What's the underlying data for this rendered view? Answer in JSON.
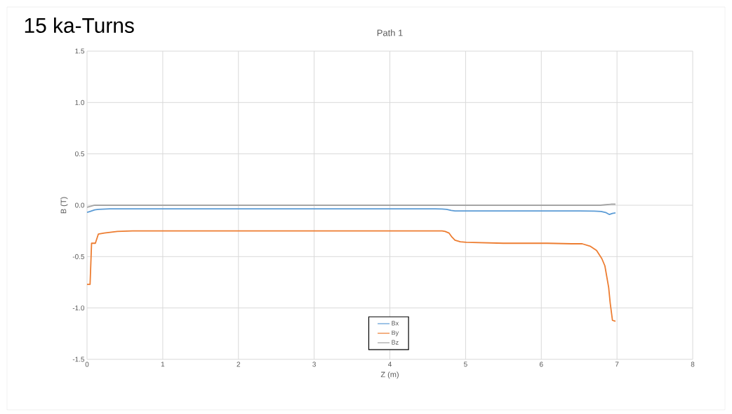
{
  "chart_data": {
    "type": "line",
    "title": "Path 1",
    "xlabel": "Z (m)",
    "ylabel": "B (T)",
    "annotations": [
      "15 ka-Turns"
    ],
    "xlim": [
      0,
      8
    ],
    "xticks": [
      0,
      1,
      2,
      3,
      4,
      5,
      6,
      7,
      8
    ],
    "ylim": [
      -1.5,
      1.5
    ],
    "yticks": [
      {
        "value": -1.5,
        "label": "-1.5"
      },
      {
        "value": -1,
        "label": "-1.0"
      },
      {
        "value": -0.5,
        "label": "-0.5"
      },
      {
        "value": 0,
        "label": "0.0"
      },
      {
        "value": 0.5,
        "label": "0.5"
      },
      {
        "value": 1,
        "label": "1.0"
      },
      {
        "value": 1.5,
        "label": "1.5"
      }
    ],
    "grid": true,
    "legend": "bottom",
    "marker": "none",
    "line_style": "solid",
    "series": [
      {
        "name": "Bx",
        "color": "#5b9bd5",
        "x": [
          0,
          0.04,
          0.1,
          0.15,
          0.3,
          1,
          2,
          3,
          4,
          4.6,
          4.69,
          4.75,
          4.81,
          4.86,
          5,
          6,
          6.5,
          6.7,
          6.79,
          6.85,
          6.9,
          6.94,
          6.98
        ],
        "values": [
          -0.07,
          -0.06,
          -0.045,
          -0.04,
          -0.035,
          -0.035,
          -0.035,
          -0.035,
          -0.035,
          -0.035,
          -0.037,
          -0.04,
          -0.05,
          -0.055,
          -0.055,
          -0.055,
          -0.055,
          -0.057,
          -0.06,
          -0.07,
          -0.09,
          -0.08,
          -0.075
        ]
      },
      {
        "name": "By",
        "color": "#ed7d31",
        "x": [
          0,
          0.04,
          0.06,
          0.11,
          0.15,
          0.23,
          0.4,
          0.6,
          1,
          2,
          3,
          4,
          4.6,
          4.69,
          4.73,
          4.78,
          4.82,
          4.86,
          4.93,
          5.01,
          5.5,
          6.08,
          6.4,
          6.54,
          6.65,
          6.73,
          6.8,
          6.84,
          6.89,
          6.91,
          6.94,
          6.98
        ],
        "values": [
          -0.77,
          -0.77,
          -0.37,
          -0.37,
          -0.28,
          -0.27,
          -0.255,
          -0.25,
          -0.25,
          -0.25,
          -0.25,
          -0.25,
          -0.25,
          -0.25,
          -0.255,
          -0.27,
          -0.31,
          -0.34,
          -0.355,
          -0.36,
          -0.37,
          -0.37,
          -0.375,
          -0.375,
          -0.4,
          -0.44,
          -0.52,
          -0.59,
          -0.8,
          -0.95,
          -1.12,
          -1.13
        ]
      },
      {
        "name": "Bz",
        "color": "#a5a5a5",
        "x": [
          0,
          0.05,
          0.1,
          1,
          2,
          3,
          4,
          5,
          6,
          6.78,
          6.85,
          6.92,
          6.98
        ],
        "values": [
          -0.02,
          -0.01,
          0,
          0,
          0,
          0,
          0,
          0,
          0,
          0,
          0.005,
          0.01,
          0.01
        ]
      }
    ]
  }
}
